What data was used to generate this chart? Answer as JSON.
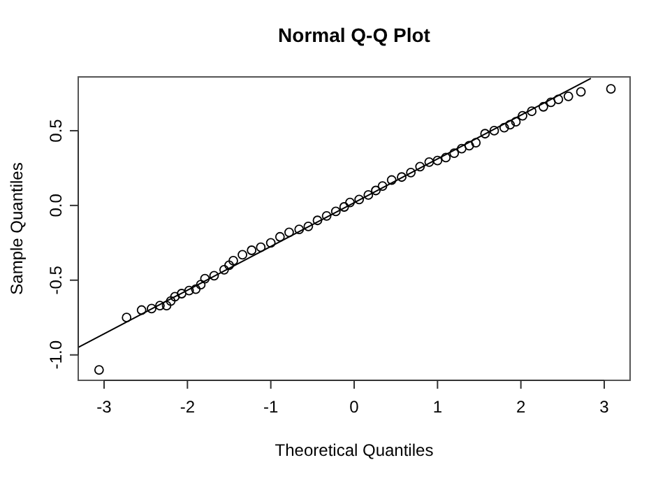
{
  "chart_data": {
    "type": "scatter",
    "title": "Normal Q-Q Plot",
    "xlabel": "Theoretical Quantiles",
    "ylabel": "Sample Quantiles",
    "xlim": [
      -3.31,
      3.31
    ],
    "ylim": [
      -1.17,
      0.86
    ],
    "xticks": [
      -3,
      -2,
      -1,
      0,
      1,
      2,
      3
    ],
    "yticks": [
      {
        "value": -1,
        "label": "-1.0"
      },
      {
        "value": -0.5,
        "label": "-0.5"
      },
      {
        "value": 0,
        "label": "0.0"
      },
      {
        "value": 0.5,
        "label": "0.5"
      }
    ],
    "series": [
      {
        "marker": "circle",
        "color": "#000000",
        "x": [
          -3.06,
          -2.73,
          -2.55,
          -2.43,
          -2.33,
          -2.25,
          -2.2,
          -2.15,
          -2.07,
          -1.98,
          -1.9,
          -1.84,
          -1.79,
          -1.68,
          -1.56,
          -1.5,
          -1.45,
          -1.34,
          -1.23,
          -1.12,
          -1.0,
          -0.89,
          -0.78,
          -0.66,
          -0.55,
          -0.44,
          -0.33,
          -0.22,
          -0.12,
          -0.05,
          0.06,
          0.17,
          0.26,
          0.34,
          0.45,
          0.57,
          0.68,
          0.79,
          0.9,
          1.0,
          1.1,
          1.2,
          1.29,
          1.38,
          1.46,
          1.57,
          1.68,
          1.8,
          1.87,
          1.94,
          2.02,
          2.13,
          2.27,
          2.36,
          2.45,
          2.57,
          2.72,
          3.08
        ],
        "values": [
          -1.1,
          -0.75,
          -0.7,
          -0.69,
          -0.67,
          -0.67,
          -0.64,
          -0.61,
          -0.59,
          -0.57,
          -0.56,
          -0.53,
          -0.49,
          -0.47,
          -0.43,
          -0.4,
          -0.37,
          -0.33,
          -0.3,
          -0.28,
          -0.25,
          -0.21,
          -0.18,
          -0.16,
          -0.14,
          -0.1,
          -0.07,
          -0.04,
          -0.01,
          0.02,
          0.04,
          0.07,
          0.1,
          0.13,
          0.17,
          0.19,
          0.22,
          0.26,
          0.29,
          0.3,
          0.32,
          0.35,
          0.38,
          0.4,
          0.42,
          0.48,
          0.5,
          0.52,
          0.54,
          0.56,
          0.6,
          0.63,
          0.66,
          0.69,
          0.71,
          0.73,
          0.76,
          0.78
        ]
      },
      {
        "type": "line",
        "marker": "none",
        "color": "#000000",
        "line_style": "solid",
        "x": [
          -3.31,
          2.84
        ],
        "values": [
          -0.95,
          0.85
        ]
      }
    ]
  }
}
